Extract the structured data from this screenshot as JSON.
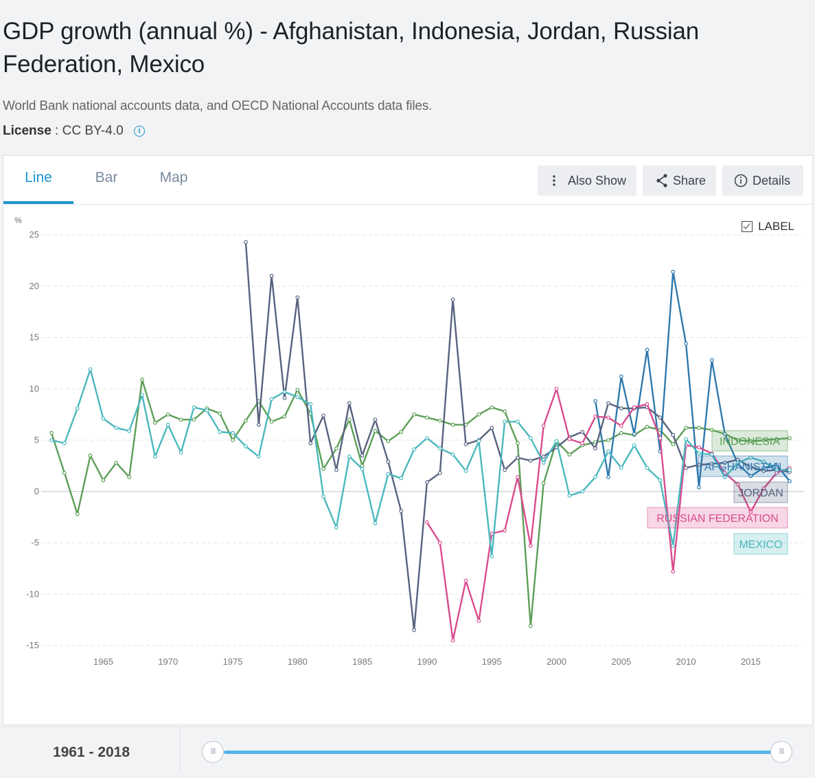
{
  "header": {
    "title": "GDP growth (annual %) - Afghanistan, Indonesia, Jordan, Russian Federation, Mexico",
    "source": "World Bank national accounts data, and OECD National Accounts data files.",
    "license_label": "License",
    "license_value": ": CC BY-4.0"
  },
  "tabs": [
    {
      "label": "Line",
      "active": true
    },
    {
      "label": "Bar",
      "active": false
    },
    {
      "label": "Map",
      "active": false
    }
  ],
  "toolbar": {
    "also_show": "Also Show",
    "share": "Share",
    "details": "Details"
  },
  "label_toggle": "LABEL",
  "range": {
    "label": "1961 - 2018",
    "start": 1961,
    "end": 2018,
    "handle_glyph": "III"
  },
  "colors": {
    "accent": "#1b93d1",
    "slider": "#56b4e9"
  },
  "chart_data": {
    "type": "line",
    "ylabel": "%",
    "ylim": [
      -15,
      25
    ],
    "xlim": [
      1961,
      2018
    ],
    "yticks": [
      25,
      20,
      15,
      10,
      5,
      0,
      -5,
      -10,
      -15
    ],
    "xticks": [
      1965,
      1970,
      1975,
      1980,
      1985,
      1990,
      1995,
      2000,
      2005,
      2010,
      2015
    ],
    "grid": true,
    "series": [
      {
        "name": "INDONESIA",
        "color": "#5c9e57",
        "points": [
          [
            1961,
            5.7
          ],
          [
            1962,
            1.8
          ],
          [
            1963,
            -2.2
          ],
          [
            1964,
            3.5
          ],
          [
            1965,
            1.1
          ],
          [
            1966,
            2.8
          ],
          [
            1967,
            1.4
          ],
          [
            1968,
            10.9
          ],
          [
            1969,
            6.7
          ],
          [
            1970,
            7.5
          ],
          [
            1971,
            7.0
          ],
          [
            1972,
            7.0
          ],
          [
            1973,
            8.1
          ],
          [
            1974,
            7.6
          ],
          [
            1975,
            5.0
          ],
          [
            1976,
            6.9
          ],
          [
            1977,
            8.8
          ],
          [
            1978,
            6.8
          ],
          [
            1979,
            7.3
          ],
          [
            1980,
            9.9
          ],
          [
            1981,
            7.6
          ],
          [
            1982,
            2.2
          ],
          [
            1983,
            4.2
          ],
          [
            1984,
            7.0
          ],
          [
            1985,
            2.5
          ],
          [
            1986,
            5.9
          ],
          [
            1987,
            4.9
          ],
          [
            1988,
            5.8
          ],
          [
            1989,
            7.5
          ],
          [
            1990,
            7.2
          ],
          [
            1991,
            6.9
          ],
          [
            1992,
            6.5
          ],
          [
            1993,
            6.5
          ],
          [
            1994,
            7.5
          ],
          [
            1995,
            8.2
          ],
          [
            1996,
            7.8
          ],
          [
            1997,
            4.7
          ],
          [
            1998,
            -13.1
          ],
          [
            1999,
            0.8
          ],
          [
            2000,
            4.9
          ],
          [
            2001,
            3.6
          ],
          [
            2002,
            4.5
          ],
          [
            2003,
            4.8
          ],
          [
            2004,
            5.0
          ],
          [
            2005,
            5.7
          ],
          [
            2006,
            5.5
          ],
          [
            2007,
            6.3
          ],
          [
            2008,
            6.0
          ],
          [
            2009,
            4.6
          ],
          [
            2010,
            6.2
          ],
          [
            2011,
            6.2
          ],
          [
            2012,
            6.0
          ],
          [
            2013,
            5.6
          ],
          [
            2014,
            5.0
          ],
          [
            2015,
            4.9
          ],
          [
            2016,
            5.0
          ],
          [
            2017,
            5.1
          ],
          [
            2018,
            5.2
          ]
        ]
      },
      {
        "name": "AFGHANISTAN",
        "color": "#2f79ad",
        "points": [
          [
            2003,
            8.8
          ],
          [
            2004,
            1.4
          ],
          [
            2005,
            11.2
          ],
          [
            2006,
            5.6
          ],
          [
            2007,
            13.8
          ],
          [
            2008,
            3.9
          ],
          [
            2009,
            21.4
          ],
          [
            2010,
            14.4
          ],
          [
            2011,
            0.4
          ],
          [
            2012,
            12.8
          ],
          [
            2013,
            5.6
          ],
          [
            2014,
            2.7
          ],
          [
            2015,
            1.5
          ],
          [
            2016,
            2.3
          ],
          [
            2017,
            2.6
          ],
          [
            2018,
            1.0
          ]
        ]
      },
      {
        "name": "JORDAN",
        "color": "#57627f",
        "points": [
          [
            1976,
            24.3
          ],
          [
            1977,
            6.5
          ],
          [
            1978,
            21.0
          ],
          [
            1979,
            9.1
          ],
          [
            1980,
            18.9
          ],
          [
            1981,
            4.7
          ],
          [
            1982,
            7.4
          ],
          [
            1983,
            2.1
          ],
          [
            1984,
            8.6
          ],
          [
            1985,
            3.5
          ],
          [
            1986,
            7.0
          ],
          [
            1987,
            2.9
          ],
          [
            1988,
            -1.9
          ],
          [
            1989,
            -13.5
          ],
          [
            1990,
            0.9
          ],
          [
            1991,
            1.8
          ],
          [
            1992,
            18.7
          ],
          [
            1993,
            4.6
          ],
          [
            1994,
            5.0
          ],
          [
            1995,
            6.2
          ],
          [
            1996,
            2.1
          ],
          [
            1997,
            3.3
          ],
          [
            1998,
            3.0
          ],
          [
            1999,
            3.4
          ],
          [
            2000,
            4.3
          ],
          [
            2001,
            5.3
          ],
          [
            2002,
            5.8
          ],
          [
            2003,
            4.2
          ],
          [
            2004,
            8.6
          ],
          [
            2005,
            8.1
          ],
          [
            2006,
            8.1
          ],
          [
            2007,
            8.2
          ],
          [
            2008,
            7.2
          ],
          [
            2009,
            5.5
          ],
          [
            2010,
            2.3
          ],
          [
            2011,
            2.6
          ],
          [
            2012,
            2.7
          ],
          [
            2013,
            2.8
          ],
          [
            2014,
            3.1
          ],
          [
            2015,
            2.4
          ],
          [
            2016,
            2.0
          ],
          [
            2017,
            2.1
          ],
          [
            2018,
            1.9
          ]
        ]
      },
      {
        "name": "RUSSIAN FEDERATION",
        "color": "#d94b8d",
        "points": [
          [
            1990,
            -3.0
          ],
          [
            1991,
            -5.0
          ],
          [
            1992,
            -14.5
          ],
          [
            1993,
            -8.7
          ],
          [
            1994,
            -12.6
          ],
          [
            1995,
            -4.1
          ],
          [
            1996,
            -3.8
          ],
          [
            1997,
            1.4
          ],
          [
            1998,
            -5.3
          ],
          [
            1999,
            6.4
          ],
          [
            2000,
            10.0
          ],
          [
            2001,
            5.1
          ],
          [
            2002,
            4.7
          ],
          [
            2003,
            7.3
          ],
          [
            2004,
            7.2
          ],
          [
            2005,
            6.4
          ],
          [
            2006,
            8.2
          ],
          [
            2007,
            8.5
          ],
          [
            2008,
            5.2
          ],
          [
            2009,
            -7.8
          ],
          [
            2010,
            4.5
          ],
          [
            2011,
            4.3
          ],
          [
            2012,
            3.7
          ],
          [
            2013,
            1.8
          ],
          [
            2014,
            0.7
          ],
          [
            2015,
            -2.0
          ],
          [
            2016,
            0.3
          ],
          [
            2017,
            1.8
          ],
          [
            2018,
            2.3
          ]
        ]
      },
      {
        "name": "MEXICO",
        "color": "#4ab8be",
        "points": [
          [
            1961,
            5.0
          ],
          [
            1962,
            4.7
          ],
          [
            1963,
            8.1
          ],
          [
            1964,
            11.9
          ],
          [
            1965,
            7.1
          ],
          [
            1966,
            6.2
          ],
          [
            1967,
            5.9
          ],
          [
            1968,
            9.4
          ],
          [
            1969,
            3.4
          ],
          [
            1970,
            6.5
          ],
          [
            1971,
            3.8
          ],
          [
            1972,
            8.2
          ],
          [
            1973,
            7.9
          ],
          [
            1974,
            5.8
          ],
          [
            1975,
            5.7
          ],
          [
            1976,
            4.4
          ],
          [
            1977,
            3.4
          ],
          [
            1978,
            9.0
          ],
          [
            1979,
            9.7
          ],
          [
            1980,
            9.2
          ],
          [
            1981,
            8.5
          ],
          [
            1982,
            -0.5
          ],
          [
            1983,
            -3.5
          ],
          [
            1984,
            3.4
          ],
          [
            1985,
            2.2
          ],
          [
            1986,
            -3.1
          ],
          [
            1987,
            1.7
          ],
          [
            1988,
            1.3
          ],
          [
            1989,
            4.1
          ],
          [
            1990,
            5.2
          ],
          [
            1991,
            4.2
          ],
          [
            1992,
            3.6
          ],
          [
            1993,
            2.0
          ],
          [
            1994,
            4.9
          ],
          [
            1995,
            -6.3
          ],
          [
            1996,
            6.8
          ],
          [
            1997,
            6.8
          ],
          [
            1998,
            5.2
          ],
          [
            1999,
            2.8
          ],
          [
            2000,
            4.9
          ],
          [
            2001,
            -0.4
          ],
          [
            2002,
            0.0
          ],
          [
            2003,
            1.4
          ],
          [
            2004,
            3.9
          ],
          [
            2005,
            2.3
          ],
          [
            2006,
            4.5
          ],
          [
            2007,
            2.3
          ],
          [
            2008,
            1.1
          ],
          [
            2009,
            -5.3
          ],
          [
            2010,
            5.1
          ],
          [
            2011,
            3.7
          ],
          [
            2012,
            3.6
          ],
          [
            2013,
            1.4
          ],
          [
            2014,
            2.8
          ],
          [
            2015,
            3.3
          ],
          [
            2016,
            2.9
          ],
          [
            2017,
            2.1
          ],
          [
            2018,
            2.1
          ]
        ]
      }
    ]
  }
}
